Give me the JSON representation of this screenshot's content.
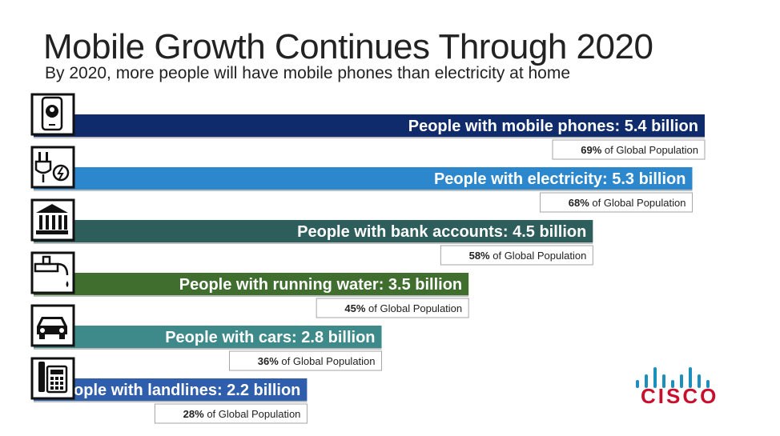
{
  "header": {
    "title": "Mobile Growth Continues Through 2020",
    "subtitle": "By 2020, more people will have mobile phones than electricity at home"
  },
  "chart_data": {
    "type": "bar",
    "orientation": "horizontal",
    "unit": "billion",
    "categories": [
      "mobile phones",
      "electricity",
      "bank accounts",
      "running water",
      "cars",
      "landlines"
    ],
    "values": [
      5.4,
      5.3,
      4.5,
      3.5,
      2.8,
      2.2
    ],
    "labels": [
      "People with mobile phones: 5.4 billion",
      "People with electricity: 5.3 billion",
      "People with bank accounts: 4.5 billion",
      "People with running water: 3.5 billion",
      "People with cars: 2.8 billion",
      "People with landlines: 2.2 billion"
    ],
    "percent_of_global_population": [
      "69%",
      "68%",
      "58%",
      "45%",
      "36%",
      "28%"
    ],
    "percent_suffix": " of Global Population",
    "icons": [
      "smartphone-icon",
      "plug-icon",
      "bank-icon",
      "faucet-icon",
      "car-icon",
      "landline-phone-icon"
    ],
    "colors": [
      "#0f2b6b",
      "#2d87cc",
      "#2e5e5c",
      "#3f6e2f",
      "#3e8a8a",
      "#2f5fac"
    ]
  },
  "logo": {
    "text": "CISCO",
    "colors": {
      "bars": "#1d8fbd",
      "word": "#c8102e"
    }
  }
}
